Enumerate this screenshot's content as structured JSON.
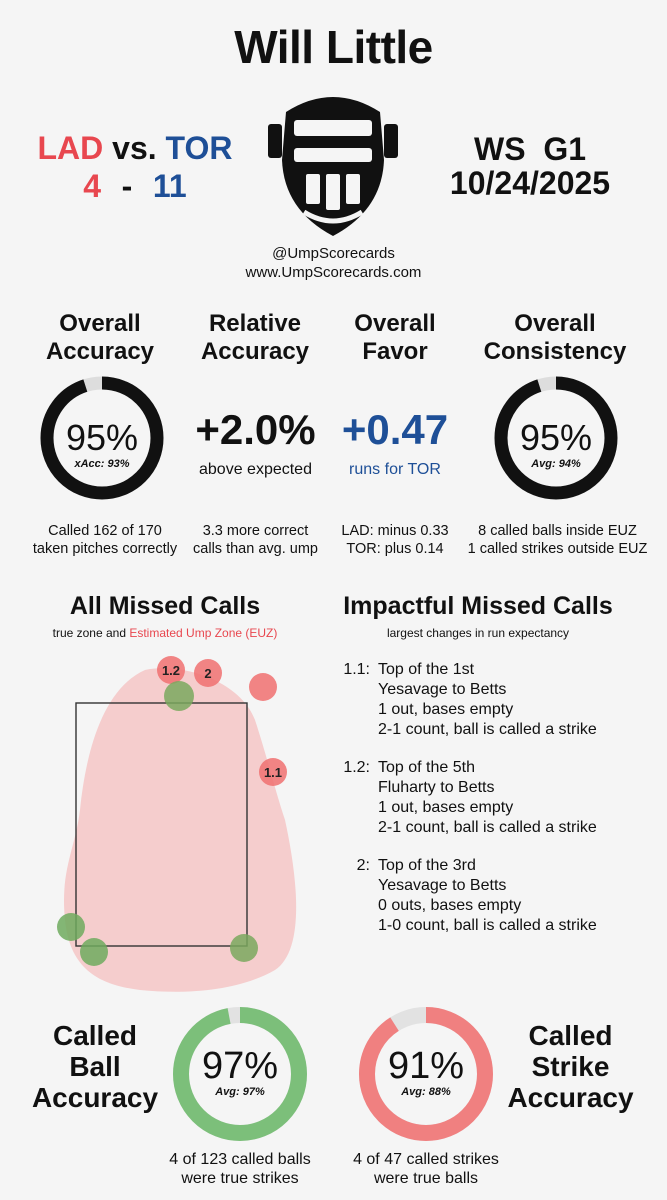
{
  "umpire_name": "Will Little",
  "teams": {
    "away": "LAD",
    "vs": "vs.",
    "home": "TOR",
    "away_score": "4",
    "dash": "-",
    "home_score": "11"
  },
  "game": {
    "series": "WS  G1",
    "date": "10/24/2025"
  },
  "social": {
    "handle": "@UmpScorecards",
    "website": "www.UmpScorecards.com"
  },
  "colors": {
    "red": "#e8474f",
    "blue": "#1e4f97",
    "green": "#7cbf7a",
    "miss_red": "#f08080"
  },
  "overall_accuracy": {
    "heading1": "Overall",
    "heading2": "Accuracy",
    "value": "95%",
    "sub": "xAcc: 93%",
    "fraction": 0.95,
    "note1": "Called 162 of 170",
    "note2": "taken pitches correctly"
  },
  "relative_accuracy": {
    "heading1": "Relative",
    "heading2": "Accuracy",
    "value": "+2.0%",
    "sub": "above expected",
    "note1": "3.3 more correct",
    "note2": "calls than avg. ump"
  },
  "overall_favor": {
    "heading1": "Overall",
    "heading2": "Favor",
    "value": "+0.47",
    "sub": "runs for TOR",
    "note1": "LAD: minus 0.33",
    "note2": "TOR: plus 0.14"
  },
  "overall_consistency": {
    "heading1": "Overall",
    "heading2": "Consistency",
    "value": "95%",
    "sub": "Avg: 94%",
    "fraction": 0.95,
    "note1": "8 called balls inside EUZ",
    "note2": "1 called strikes outside EUZ"
  },
  "all_missed": {
    "heading": "All Missed Calls",
    "legend_plain": "true zone and ",
    "legend_red": "Estimated Ump Zone (EUZ)"
  },
  "impactful": {
    "heading": "Impactful Missed Calls",
    "subheading": "largest changes in run expectancy",
    "items": [
      {
        "num": "1.1:",
        "lines": [
          "Top of the 1st",
          "Yesavage to Betts",
          "1 out, bases empty",
          "2-1 count, ball is called a strike"
        ]
      },
      {
        "num": "1.2:",
        "lines": [
          "Top of the 5th",
          "Fluharty to Betts",
          "1 out, bases empty",
          "2-1 count, ball is called a strike"
        ]
      },
      {
        "num": "2:",
        "lines": [
          "Top of the 3rd",
          "Yesavage to Betts",
          "0 outs, bases empty",
          "1-0 count, ball is called a strike"
        ]
      }
    ]
  },
  "pitch_labels": {
    "p12": "1.2",
    "p2": "2",
    "p11": "1.1"
  },
  "called_ball": {
    "heading1": "Called",
    "heading2": "Ball",
    "heading3": "Accuracy",
    "value": "97%",
    "sub": "Avg: 97%",
    "fraction": 0.97,
    "note1": "4 of 123 called balls",
    "note2": "were true strikes"
  },
  "called_strike": {
    "heading1": "Called",
    "heading2": "Strike",
    "heading3": "Accuracy",
    "value": "91%",
    "sub": "Avg: 88%",
    "fraction": 0.91,
    "note1": "4 of 47 called strikes",
    "note2": "were true balls"
  }
}
